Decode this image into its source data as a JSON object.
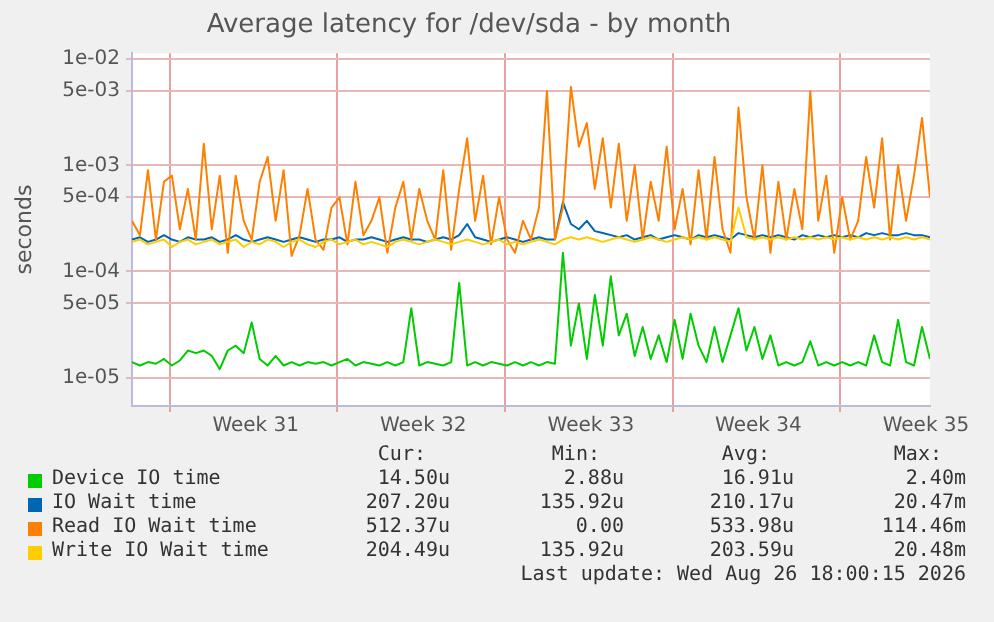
{
  "chart_data": {
    "type": "line",
    "title": "Average latency for /dev/sda - by month",
    "ylabel": "seconds",
    "log": true,
    "grid": true,
    "legend": "bottom",
    "xlim": [
      "2026-07-24T10:00",
      "2026-08-26T18:00"
    ],
    "xticks": [
      {
        "value": "2026-07-26T00:00",
        "label": null
      },
      {
        "value": "2026-08-02T00:00",
        "label": null
      },
      {
        "value": "2026-08-09T00:00",
        "label": null
      },
      {
        "value": "2026-08-16T00:00",
        "label": null
      },
      {
        "value": "2026-08-23T00:00",
        "label": null
      },
      {
        "value": "2026-07-29T14:00",
        "label": "Week 31"
      },
      {
        "value": "2026-08-05T14:00",
        "label": "Week 32"
      },
      {
        "value": "2026-08-12T14:00",
        "label": "Week 33"
      },
      {
        "value": "2026-08-19T14:00",
        "label": "Week 34"
      },
      {
        "value": "2026-08-26T14:00",
        "label": "Week 35"
      }
    ],
    "ylim": [
      5.4e-06,
      0.0114
    ],
    "yticks": [
      {
        "value": 0.01,
        "label": "1e-02"
      },
      {
        "value": 0.005,
        "label": "5e-03"
      },
      {
        "value": 0.001,
        "label": "1e-03"
      },
      {
        "value": 0.0005,
        "label": "5e-04"
      },
      {
        "value": 0.0001,
        "label": "1e-04"
      },
      {
        "value": 5e-05,
        "label": "5e-05"
      },
      {
        "value": 1e-05,
        "label": "1e-05"
      }
    ],
    "x": [
      "2026-07-24T10:00",
      "2026-07-24T18:00",
      "2026-07-25T02:00",
      "2026-07-25T10:00",
      "2026-07-25T18:00",
      "2026-07-26T02:00",
      "2026-07-26T10:00",
      "2026-07-26T18:00",
      "2026-07-27T02:00",
      "2026-07-27T10:00",
      "2026-07-27T18:00",
      "2026-07-28T02:00",
      "2026-07-28T10:00",
      "2026-07-28T18:00",
      "2026-07-29T02:00",
      "2026-07-29T10:00",
      "2026-07-29T18:00",
      "2026-07-30T02:00",
      "2026-07-30T10:00",
      "2026-07-30T18:00",
      "2026-07-31T02:00",
      "2026-07-31T10:00",
      "2026-07-31T18:00",
      "2026-08-01T02:00",
      "2026-08-01T10:00",
      "2026-08-01T18:00",
      "2026-08-02T02:00",
      "2026-08-02T10:00",
      "2026-08-02T18:00",
      "2026-08-03T02:00",
      "2026-08-03T10:00",
      "2026-08-03T18:00",
      "2026-08-04T02:00",
      "2026-08-04T10:00",
      "2026-08-04T18:00",
      "2026-08-05T02:00",
      "2026-08-05T10:00",
      "2026-08-05T18:00",
      "2026-08-06T02:00",
      "2026-08-06T10:00",
      "2026-08-06T18:00",
      "2026-08-07T02:00",
      "2026-08-07T10:00",
      "2026-08-07T18:00",
      "2026-08-08T02:00",
      "2026-08-08T10:00",
      "2026-08-08T18:00",
      "2026-08-09T02:00",
      "2026-08-09T10:00",
      "2026-08-09T18:00",
      "2026-08-10T02:00",
      "2026-08-10T10:00",
      "2026-08-10T18:00",
      "2026-08-11T02:00",
      "2026-08-11T10:00",
      "2026-08-11T18:00",
      "2026-08-12T02:00",
      "2026-08-12T10:00",
      "2026-08-12T18:00",
      "2026-08-13T02:00",
      "2026-08-13T10:00",
      "2026-08-13T18:00",
      "2026-08-14T02:00",
      "2026-08-14T10:00",
      "2026-08-14T18:00",
      "2026-08-15T02:00",
      "2026-08-15T10:00",
      "2026-08-15T18:00",
      "2026-08-16T02:00",
      "2026-08-16T10:00",
      "2026-08-16T18:00",
      "2026-08-17T02:00",
      "2026-08-17T10:00",
      "2026-08-17T18:00",
      "2026-08-18T02:00",
      "2026-08-18T10:00",
      "2026-08-18T18:00",
      "2026-08-19T02:00",
      "2026-08-19T10:00",
      "2026-08-19T18:00",
      "2026-08-20T02:00",
      "2026-08-20T10:00",
      "2026-08-20T18:00",
      "2026-08-21T02:00",
      "2026-08-21T10:00",
      "2026-08-21T18:00",
      "2026-08-22T02:00",
      "2026-08-22T10:00",
      "2026-08-22T18:00",
      "2026-08-23T02:00",
      "2026-08-23T10:00",
      "2026-08-23T18:00",
      "2026-08-24T02:00",
      "2026-08-24T10:00",
      "2026-08-24T18:00",
      "2026-08-25T02:00",
      "2026-08-25T10:00",
      "2026-08-25T18:00",
      "2026-08-26T02:00",
      "2026-08-26T10:00",
      "2026-08-26T18:00"
    ],
    "series": [
      {
        "name": "Device IO time",
        "color": "#00cc00",
        "values": [
          1.4e-05,
          1.3e-05,
          1.4e-05,
          1.35e-05,
          1.5e-05,
          1.3e-05,
          1.45e-05,
          1.8e-05,
          1.7e-05,
          1.8e-05,
          1.6e-05,
          1.2e-05,
          1.8e-05,
          2e-05,
          1.7e-05,
          3.3e-05,
          1.5e-05,
          1.3e-05,
          1.6e-05,
          1.3e-05,
          1.4e-05,
          1.3e-05,
          1.4e-05,
          1.35e-05,
          1.4e-05,
          1.3e-05,
          1.4e-05,
          1.5e-05,
          1.3e-05,
          1.4e-05,
          1.35e-05,
          1.3e-05,
          1.4e-05,
          1.3e-05,
          1.4e-05,
          4.5e-05,
          1.3e-05,
          1.4e-05,
          1.35e-05,
          1.3e-05,
          1.4e-05,
          7.8e-05,
          1.3e-05,
          1.4e-05,
          1.3e-05,
          1.4e-05,
          1.35e-05,
          1.3e-05,
          1.4e-05,
          1.3e-05,
          1.4e-05,
          1.3e-05,
          1.4e-05,
          1.35e-05,
          0.00015,
          2e-05,
          5e-05,
          1.5e-05,
          6e-05,
          2e-05,
          9e-05,
          2.5e-05,
          4e-05,
          1.6e-05,
          3e-05,
          1.5e-05,
          2.5e-05,
          1.4e-05,
          3.5e-05,
          1.5e-05,
          4e-05,
          2e-05,
          1.4e-05,
          3e-05,
          1.4e-05,
          2.5e-05,
          4.5e-05,
          1.8e-05,
          3e-05,
          1.5e-05,
          2.5e-05,
          1.3e-05,
          1.4e-05,
          1.3e-05,
          1.4e-05,
          2.2e-05,
          1.3e-05,
          1.4e-05,
          1.3e-05,
          1.4e-05,
          1.3e-05,
          1.4e-05,
          1.3e-05,
          2.5e-05,
          1.4e-05,
          1.3e-05,
          3.5e-05,
          1.4e-05,
          1.3e-05,
          3e-05,
          1.5e-05
        ]
      },
      {
        "name": "IO Wait time",
        "color": "#0066b3",
        "values": [
          0.0002,
          0.00021,
          0.00019,
          0.0002,
          0.00022,
          0.0002,
          0.00019,
          0.00021,
          0.0002,
          0.0002,
          0.00021,
          0.00019,
          0.0002,
          0.00022,
          0.0002,
          0.00019,
          0.0002,
          0.00021,
          0.0002,
          0.00019,
          0.0002,
          0.00021,
          0.0002,
          0.00019,
          0.0002,
          0.0002,
          0.00021,
          0.00019,
          0.0002,
          0.0002,
          0.00021,
          0.0002,
          0.00019,
          0.0002,
          0.00021,
          0.0002,
          0.0002,
          0.00019,
          0.0002,
          0.00021,
          0.0002,
          0.00022,
          0.00028,
          0.00021,
          0.0002,
          0.00019,
          0.0002,
          0.00021,
          0.0002,
          0.00019,
          0.0002,
          0.00021,
          0.0002,
          0.0002,
          0.00045,
          0.00028,
          0.00025,
          0.0003,
          0.00024,
          0.00023,
          0.00022,
          0.00021,
          0.00022,
          0.0002,
          0.00021,
          0.00022,
          0.0002,
          0.00021,
          0.00022,
          0.00021,
          0.0002,
          0.00022,
          0.00021,
          0.00022,
          0.00021,
          0.0002,
          0.00023,
          0.00022,
          0.00021,
          0.00022,
          0.00021,
          0.00022,
          0.00021,
          0.0002,
          0.00022,
          0.00021,
          0.00022,
          0.00021,
          0.00022,
          0.00021,
          0.00022,
          0.00021,
          0.00023,
          0.00022,
          0.00023,
          0.00022,
          0.00022,
          0.00023,
          0.00022,
          0.00022,
          0.00021
        ]
      },
      {
        "name": "Read IO Wait time",
        "color": "#ff8000",
        "values": [
          0.0003,
          0.00022,
          0.0009,
          0.0002,
          0.0007,
          0.0008,
          0.00025,
          0.0006,
          0.0002,
          0.0016,
          0.00025,
          0.0008,
          0.00015,
          0.0008,
          0.0003,
          0.0002,
          0.0007,
          0.0012,
          0.0003,
          0.0009,
          0.00014,
          0.00022,
          0.0006,
          0.0002,
          0.00016,
          0.0004,
          0.0005,
          0.00018,
          0.0007,
          0.00022,
          0.0003,
          0.0005,
          0.00015,
          0.0004,
          0.0007,
          0.0002,
          0.0006,
          0.0003,
          0.0002,
          0.0009,
          0.00016,
          0.0006,
          0.0018,
          0.0003,
          0.0008,
          0.00018,
          0.0005,
          0.0002,
          0.00015,
          0.0003,
          0.0002,
          0.0004,
          0.005,
          0.0002,
          0.0004,
          0.0055,
          0.0015,
          0.0025,
          0.0006,
          0.0018,
          0.0004,
          0.0016,
          0.0003,
          0.001,
          0.0002,
          0.0007,
          0.0003,
          0.0015,
          0.00025,
          0.0006,
          0.00018,
          0.0009,
          0.0002,
          0.0012,
          0.00025,
          0.00015,
          0.0035,
          0.0005,
          0.0002,
          0.001,
          0.00015,
          0.0007,
          0.0002,
          0.0006,
          0.00025,
          0.005,
          0.0003,
          0.0008,
          0.00015,
          0.0005,
          0.0002,
          0.0003,
          0.0012,
          0.0004,
          0.0018,
          0.0002,
          0.001,
          0.0003,
          0.0008,
          0.0028,
          0.0005
        ]
      },
      {
        "name": "Write IO Wait time",
        "color": "#ffcc00",
        "values": [
          0.00019,
          0.0002,
          0.00018,
          0.00019,
          0.0002,
          0.00017,
          0.00019,
          0.0002,
          0.00018,
          0.00019,
          0.0002,
          0.00018,
          0.00019,
          0.0002,
          0.00017,
          0.00019,
          0.00018,
          0.0002,
          0.00019,
          0.00017,
          0.00019,
          0.0002,
          0.00018,
          0.00017,
          0.00019,
          0.0002,
          0.00018,
          0.00019,
          0.0002,
          0.00018,
          0.00019,
          0.00018,
          0.00017,
          0.00019,
          0.0002,
          0.00019,
          0.00018,
          0.00019,
          0.0002,
          0.00019,
          0.00018,
          0.00019,
          0.0002,
          0.00019,
          0.00018,
          0.00019,
          0.0002,
          0.00018,
          0.00019,
          0.00018,
          0.00019,
          0.0002,
          0.00019,
          0.00018,
          0.0002,
          0.00021,
          0.0002,
          0.00021,
          0.0002,
          0.00019,
          0.0002,
          0.00021,
          0.0002,
          0.00019,
          0.0002,
          0.00021,
          0.0002,
          0.00019,
          0.0002,
          0.00021,
          0.0002,
          0.00021,
          0.0002,
          0.00021,
          0.0002,
          0.00019,
          0.0004,
          0.00021,
          0.0002,
          0.00021,
          0.0002,
          0.00021,
          0.0002,
          0.00021,
          0.0002,
          0.00021,
          0.0002,
          0.00021,
          0.0002,
          0.00021,
          0.0002,
          0.00021,
          0.0002,
          0.00021,
          0.0002,
          0.00021,
          0.0002,
          0.00021,
          0.0002,
          0.00021,
          0.0002
        ]
      }
    ],
    "annotations": [
      "Cur:",
      "Min:",
      "Avg:",
      "Max:",
      "14.50u",
      "2.88u",
      "16.91u",
      "2.40m",
      "207.20u",
      "135.92u",
      "210.17u",
      "20.47m",
      "512.37u",
      "0.00",
      "533.98u",
      "114.46m",
      "204.49u",
      "135.92u",
      "203.59u",
      "20.48m",
      "Last update: Wed Aug 26 18:00:15 2026"
    ]
  }
}
